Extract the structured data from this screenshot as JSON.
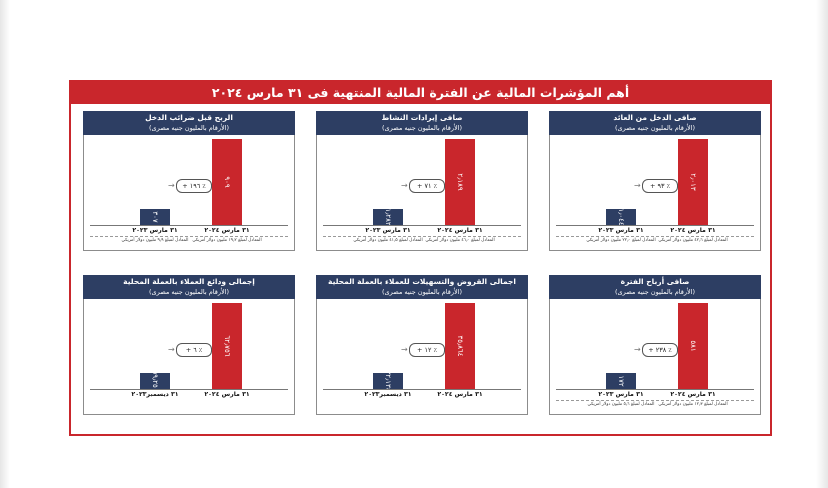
{
  "page_title": "أهم المؤشرات المالية عن الفترة المالية المنتهية فى ٣١ مارس ٢٠٢٤",
  "colors": {
    "frame": "#c9262c",
    "header": "#2d3e63",
    "bar_current": "#c9262c",
    "bar_prior": "#2d3e63"
  },
  "chart_data": [
    {
      "type": "bar",
      "title": "صافى الدخل من العائد",
      "subtitle": "(الأرقام بالمليون جنيه مصرى)",
      "categories": [
        "٣١ مارس ٢٠٢٤",
        "٣١ مارس ٢٠٢٣"
      ],
      "values": [
        2013,
        1044
      ],
      "value_labels": [
        "٢٫٠١٣",
        "١٫٠٤٤"
      ],
      "growth": "+ ٩٣ ٪",
      "notes": [
        "المعادل لمبلغ ٤٢٫٦ مليون دولار أمريكي",
        "المعادل لمبلغ ٢٢٫٠ مليون دولار أمريكي"
      ]
    },
    {
      "type": "bar",
      "title": "صافى إيرادات النشاط",
      "subtitle": "(الأرقام بالمليون جنيه مصرى)",
      "categories": [
        "٣١ مارس ٢٠٢٤",
        "٣١ مارس ٢٠٢٣"
      ],
      "values": [
        2189,
        1282
      ],
      "value_labels": [
        "٢٫١٨٩",
        "١٫٢٨٢"
      ],
      "growth": "+ ٧١ ٪",
      "notes": [
        "المعادل لمبلغ ٤٦٫٠ مليون دولار أمريكي",
        "المعادل لمبلغ ٤١٫٥ مليون دولار أمريكي"
      ]
    },
    {
      "type": "bar",
      "title": "الربح قبل ضرائب الدخل",
      "subtitle": "(الأرقام بالمليون جنيه مصرى)",
      "categories": [
        "٣١ مارس ٢٠٢٤",
        "٣١ مارس ٢٠٢٣"
      ],
      "values": [
        909,
        307
      ],
      "value_labels": [
        "٩٠٩",
        "٣٠٧"
      ],
      "growth": "+ ١٩٦ ٪",
      "notes": [
        "المعادل لمبلغ ١٩٫٢ مليون دولار أمريكي",
        "المعادل لمبلغ ٩٫٩ مليون دولار أمريكي"
      ]
    },
    {
      "type": "bar",
      "title": "صافى أرباح الفترة",
      "subtitle": "(الأرقام بالمليون جنيه مصرى)",
      "categories": [
        "٣١ مارس ٢٠٢٤",
        "٣١ مارس ٢٠٢٣"
      ],
      "values": [
        581,
        172
      ],
      "value_labels": [
        "٥٨١",
        "١٧٢"
      ],
      "growth": "+ ٢٣٨ ٪",
      "notes": [
        "المعادل لمبلغ ١٢٫٣ مليون دولار أمريكي",
        "المعادل لمبلغ ٥٫٦ مليون دولار أمريكي"
      ]
    },
    {
      "type": "bar",
      "title": "اجمالى القروض والتسهيلات للعملاء بالعملة المحلية",
      "subtitle": "(الأرقام بالمليون جنيه مصرى)",
      "categories": [
        "٣١ مارس ٢٠٢٤",
        "٣١ ديسمبر٢٠٢٣"
      ],
      "values": [
        35864,
        32134
      ],
      "value_labels": [
        "٣٥٫٨٦٤",
        "٣٢٫١٣٤"
      ],
      "growth": "+ ١٢ ٪",
      "notes": []
    },
    {
      "type": "bar",
      "title": "إجمالى ودائع العملاء بالعملة المحلية",
      "subtitle": "(الأرقام بالمليون جنيه مصرى)",
      "categories": [
        "٣١ مارس ٢٠٢٤",
        "٣١ ديسمبر٢٠٢٣"
      ],
      "values": [
        62756,
        59250
      ],
      "value_labels": [
        "٦٢٫٧٥٦",
        "٥٩٫٢٥٠"
      ],
      "growth": "+ ٦ ٪",
      "notes": []
    }
  ]
}
